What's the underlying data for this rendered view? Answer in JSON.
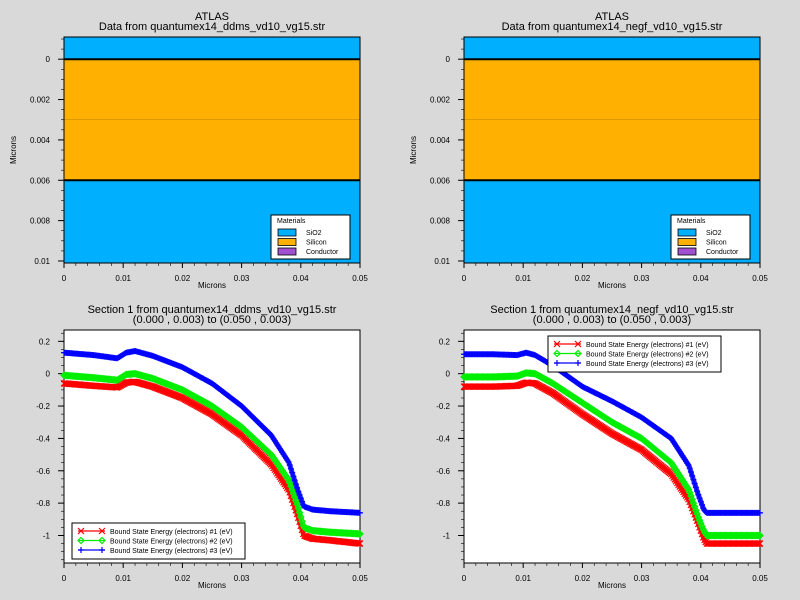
{
  "colors": {
    "background": "#d9d9d9",
    "sio2": "#00b0ff",
    "silicon": "#ffb000",
    "conductor": "#a050d0",
    "series1": "#ff0000",
    "series2": "#00ee00",
    "series3": "#0000ff"
  },
  "chart_data": [
    {
      "type": "structure",
      "title": "ATLAS",
      "subtitle": "Data from quantumex14_ddms_vd10_vg15.str",
      "xlabel": "Microns",
      "ylabel": "Microns",
      "xlim": [
        0,
        0.05
      ],
      "ylim": [
        -0.0011,
        0.0101
      ],
      "y_inverted": true,
      "xticks": [
        "0",
        "0.01",
        "0.02",
        "0.03",
        "0.04",
        "0.05"
      ],
      "yticks": [
        "0",
        "0.002",
        "0.004",
        "0.006",
        "0.008",
        "0.01"
      ],
      "regions": [
        {
          "material": "SiO2",
          "y": [
            -0.0011,
            0.0
          ]
        },
        {
          "material": "Silicon",
          "y": [
            0.0,
            0.006
          ]
        },
        {
          "material": "SiO2",
          "y": [
            0.006,
            0.0101
          ]
        }
      ],
      "legend": {
        "title": "Materials",
        "position": "bottom-right",
        "entries": [
          "SiO2",
          "Silicon",
          "Conductor"
        ]
      }
    },
    {
      "type": "structure",
      "title": "ATLAS",
      "subtitle": "Data from quantumex14_negf_vd10_vg15.str",
      "xlabel": "Microns",
      "ylabel": "Microns",
      "xlim": [
        0,
        0.05
      ],
      "ylim": [
        -0.0011,
        0.0101
      ],
      "y_inverted": true,
      "xticks": [
        "0",
        "0.01",
        "0.02",
        "0.03",
        "0.04",
        "0.05"
      ],
      "yticks": [
        "0",
        "0.002",
        "0.004",
        "0.006",
        "0.008",
        "0.01"
      ],
      "regions": [
        {
          "material": "SiO2",
          "y": [
            -0.0011,
            0.0
          ]
        },
        {
          "material": "Silicon",
          "y": [
            0.0,
            0.006
          ]
        },
        {
          "material": "SiO2",
          "y": [
            0.006,
            0.0101
          ]
        }
      ],
      "legend": {
        "title": "Materials",
        "position": "bottom-right",
        "entries": [
          "SiO2",
          "Silicon",
          "Conductor"
        ]
      }
    },
    {
      "type": "line",
      "title": "Section 1 from quantumex14_ddms_vd10_vg15.str",
      "subtitle": "(0.000 , 0.003) to (0.050 , 0.003)",
      "xlabel": "Microns",
      "ylabel": "",
      "xlim": [
        0,
        0.05
      ],
      "ylim": [
        -1.17,
        0.27
      ],
      "xticks": [
        "0",
        "0.01",
        "0.02",
        "0.03",
        "0.04",
        "0.05"
      ],
      "yticks": [
        "0.2",
        "0",
        "-0.2",
        "-0.4",
        "-0.6",
        "-0.8",
        "-1"
      ],
      "legend": {
        "position": "bottom-left"
      },
      "x": [
        0,
        0.005,
        0.009,
        0.0105,
        0.012,
        0.015,
        0.02,
        0.025,
        0.03,
        0.035,
        0.038,
        0.0395,
        0.0405,
        0.042,
        0.045,
        0.05
      ],
      "series": [
        {
          "name": "Bound State Energy (electrons) #1 (eV)",
          "marker": "x",
          "values": [
            -0.06,
            -0.075,
            -0.085,
            -0.055,
            -0.05,
            -0.08,
            -0.15,
            -0.25,
            -0.38,
            -0.56,
            -0.72,
            -0.88,
            -1.0,
            -1.02,
            -1.03,
            -1.05
          ]
        },
        {
          "name": "Bound State Energy (electrons) #2 (eV)",
          "marker": "diamond",
          "values": [
            -0.01,
            -0.025,
            -0.04,
            -0.005,
            0.0,
            -0.03,
            -0.1,
            -0.2,
            -0.33,
            -0.5,
            -0.66,
            -0.82,
            -0.95,
            -0.97,
            -0.98,
            -0.99
          ]
        },
        {
          "name": "Bound State Energy (electrons) #3 (eV)",
          "marker": "+",
          "values": [
            0.13,
            0.115,
            0.095,
            0.13,
            0.14,
            0.11,
            0.04,
            -0.06,
            -0.2,
            -0.38,
            -0.55,
            -0.72,
            -0.82,
            -0.84,
            -0.85,
            -0.86
          ]
        }
      ]
    },
    {
      "type": "line",
      "title": "Section 1 from quantumex14_negf_vd10_vg15.str",
      "subtitle": "(0.000 , 0.003) to (0.050 , 0.003)",
      "xlabel": "Microns",
      "ylabel": "",
      "xlim": [
        0,
        0.05
      ],
      "ylim": [
        -1.17,
        0.27
      ],
      "xticks": [
        "0",
        "0.01",
        "0.02",
        "0.03",
        "0.04",
        "0.05"
      ],
      "yticks": [
        "0.2",
        "0",
        "-0.2",
        "-0.4",
        "-0.6",
        "-0.8",
        "-1"
      ],
      "legend": {
        "position": "top-right"
      },
      "x": [
        0,
        0.005,
        0.009,
        0.0105,
        0.012,
        0.015,
        0.02,
        0.025,
        0.03,
        0.035,
        0.038,
        0.0395,
        0.0405,
        0.041,
        0.045,
        0.05
      ],
      "series": [
        {
          "name": "Bound State Energy (electrons) #1 (eV)",
          "marker": "x",
          "values": [
            -0.08,
            -0.08,
            -0.075,
            -0.055,
            -0.06,
            -0.12,
            -0.25,
            -0.37,
            -0.47,
            -0.62,
            -0.78,
            -0.92,
            -1.02,
            -1.05,
            -1.05,
            -1.05
          ]
        },
        {
          "name": "Bound State Energy (electrons) #2 (eV)",
          "marker": "diamond",
          "values": [
            -0.02,
            -0.02,
            -0.015,
            0.005,
            0.0,
            -0.06,
            -0.18,
            -0.3,
            -0.4,
            -0.55,
            -0.72,
            -0.88,
            -0.97,
            -1.0,
            -1.0,
            -1.0
          ]
        },
        {
          "name": "Bound State Energy (electrons) #3 (eV)",
          "marker": "+",
          "values": [
            0.12,
            0.12,
            0.115,
            0.13,
            0.115,
            0.05,
            -0.08,
            -0.17,
            -0.27,
            -0.4,
            -0.57,
            -0.74,
            -0.84,
            -0.86,
            -0.86,
            -0.86
          ]
        }
      ]
    }
  ]
}
